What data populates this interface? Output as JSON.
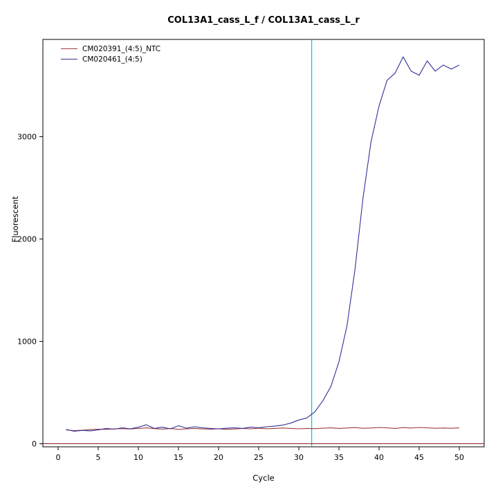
{
  "chart_data": {
    "type": "line",
    "title": "COL13A1_cass_L_f / COL13A1_cass_L_r",
    "xlabel": "Cycle",
    "ylabel": "Fluorescent",
    "xlim": [
      -1.9,
      53.1
    ],
    "ylim": [
      -30,
      3950
    ],
    "xticks": [
      0,
      5,
      10,
      15,
      20,
      25,
      30,
      35,
      40,
      45,
      50
    ],
    "yticks": [
      0,
      1000,
      2000,
      3000
    ],
    "grid": false,
    "legend_position": "top-left",
    "threshold_line_y": 0,
    "threshold_line_color": "#8B1A1A",
    "ct_marker_x": 31.6,
    "ct_marker_color": "#00CDCD",
    "x": [
      1,
      2,
      3,
      4,
      5,
      6,
      7,
      8,
      9,
      10,
      11,
      12,
      13,
      14,
      15,
      16,
      17,
      18,
      19,
      20,
      21,
      22,
      23,
      24,
      25,
      26,
      27,
      28,
      29,
      30,
      31,
      32,
      33,
      34,
      35,
      36,
      37,
      38,
      39,
      40,
      41,
      42,
      43,
      44,
      45,
      46,
      47,
      48,
      49,
      50
    ],
    "series": [
      {
        "name": "CM020391_(4:5)_NTC",
        "color": "#A03A3A",
        "values": [
          135,
          128,
          132,
          138,
          142,
          140,
          145,
          148,
          144,
          150,
          155,
          148,
          143,
          150,
          140,
          146,
          150,
          145,
          142,
          146,
          141,
          144,
          150,
          146,
          152,
          147,
          150,
          154,
          150,
          146,
          150,
          147,
          152,
          155,
          150,
          154,
          158,
          151,
          154,
          159,
          155,
          150,
          158,
          154,
          159,
          155,
          151,
          154,
          151,
          155
        ]
      },
      {
        "name": "CM020461_(4:5)",
        "color": "#30309A",
        "values": [
          140,
          122,
          130,
          126,
          136,
          150,
          142,
          156,
          146,
          162,
          185,
          150,
          162,
          146,
          176,
          152,
          166,
          156,
          150,
          146,
          152,
          156,
          150,
          162,
          156,
          166,
          172,
          182,
          202,
          232,
          252,
          312,
          420,
          560,
          800,
          1150,
          1700,
          2400,
          2950,
          3300,
          3550,
          3620,
          3780,
          3640,
          3600,
          3740,
          3640,
          3700,
          3660,
          3700
        ]
      }
    ]
  }
}
